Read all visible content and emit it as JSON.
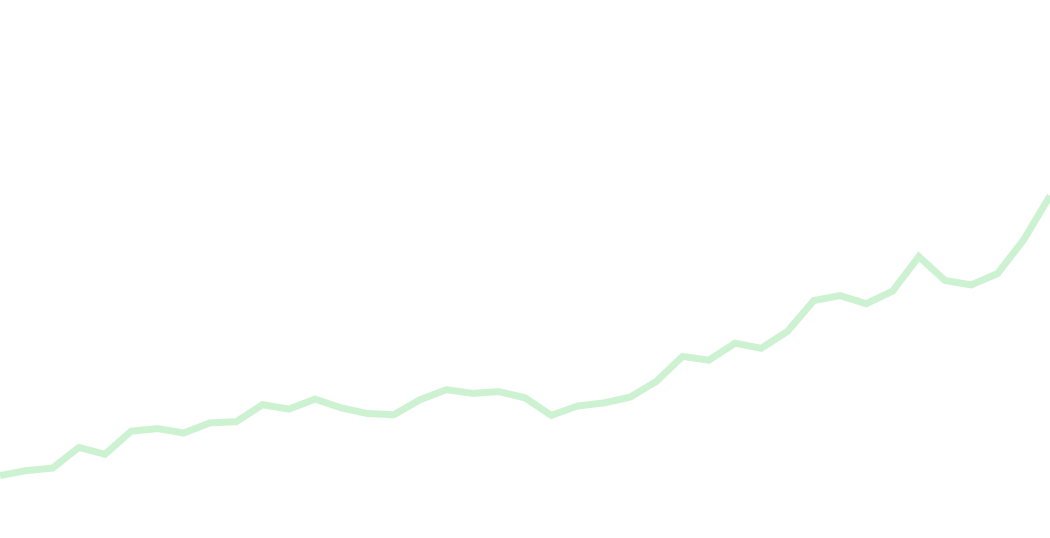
{
  "chart_data": {
    "type": "line",
    "title": "",
    "xlabel": "",
    "ylabel": "",
    "grid": true,
    "legend": "none",
    "colors": {
      "line": "#cdf2d2",
      "grid": "#f0f2dc",
      "background": "#ffffff"
    },
    "ylim": [
      0,
      8
    ],
    "xlim": [
      0,
      40
    ],
    "series": [
      {
        "x": [
          0,
          1,
          2,
          3,
          4,
          5,
          6,
          7,
          8,
          9,
          10,
          11,
          12,
          13,
          14,
          15,
          16,
          17,
          18,
          19,
          20,
          21,
          22,
          23,
          24,
          25,
          26,
          27,
          28,
          29,
          30,
          31,
          32,
          33,
          34,
          35,
          36,
          37,
          38,
          39,
          40
        ],
        "values": [
          0.42,
          0.5,
          0.54,
          0.87,
          0.76,
          1.13,
          1.17,
          1.1,
          1.26,
          1.28,
          1.55,
          1.48,
          1.64,
          1.5,
          1.41,
          1.39,
          1.63,
          1.79,
          1.73,
          1.76,
          1.66,
          1.38,
          1.53,
          1.58,
          1.67,
          1.92,
          2.32,
          2.26,
          2.53,
          2.45,
          2.72,
          3.21,
          3.29,
          3.16,
          3.36,
          3.91,
          3.53,
          3.46,
          3.64,
          4.18,
          4.88
        ]
      }
    ]
  }
}
